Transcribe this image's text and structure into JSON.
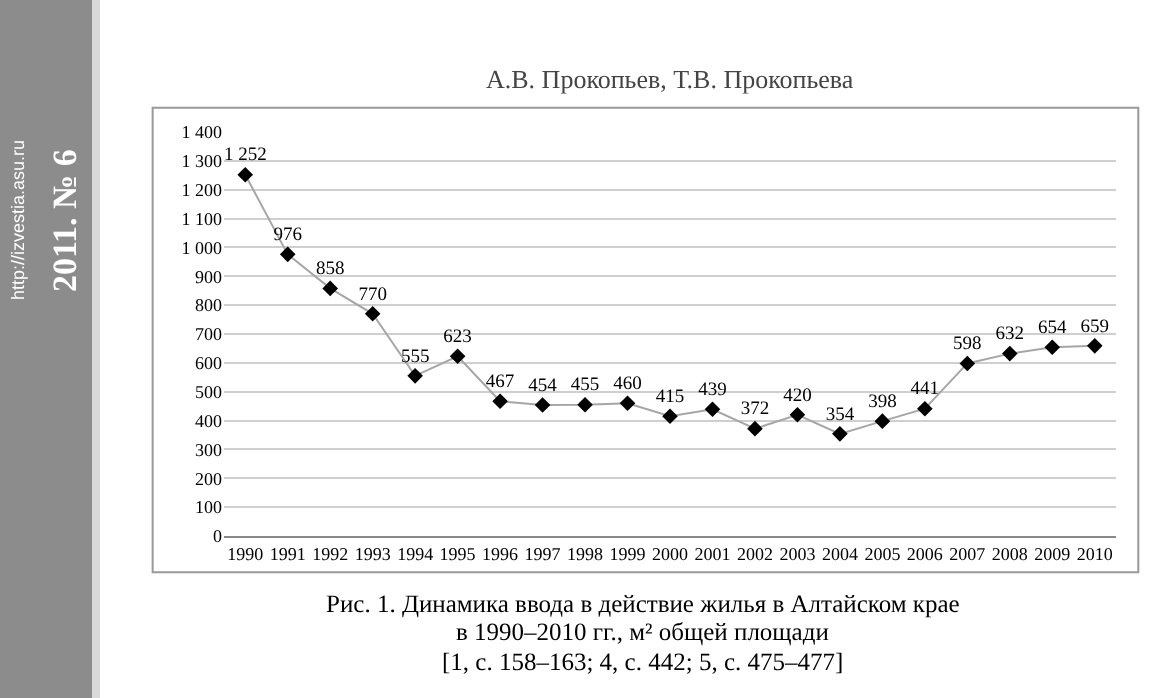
{
  "chart_data": {
    "type": "line",
    "categories": [
      "1990",
      "1991",
      "1992",
      "1993",
      "1994",
      "1995",
      "1996",
      "1997",
      "1998",
      "1999",
      "2000",
      "2001",
      "2002",
      "2003",
      "2004",
      "2005",
      "2006",
      "2007",
      "2008",
      "2009",
      "2010"
    ],
    "series": [
      {
        "color": "#a6a6a6",
        "values": [
          1252,
          976,
          858,
          770,
          555,
          623,
          467,
          454,
          455,
          460,
          415,
          439,
          372,
          420,
          354,
          398,
          441,
          598,
          632,
          654,
          659
        ]
      }
    ],
    "value_labels": [
      "1 252",
      "976",
      "858",
      "770",
      "555",
      "623",
      "467",
      "454",
      "455",
      "460",
      "415",
      "439",
      "372",
      "420",
      "354",
      "398",
      "441",
      "598",
      "632",
      "654",
      "659"
    ],
    "ylim": [
      0,
      1400
    ],
    "yticks": [
      0,
      100,
      200,
      300,
      400,
      500,
      600,
      700,
      800,
      900,
      {
        "value": 1000,
        "label": "1 000"
      },
      {
        "value": 1100,
        "label": "1 100"
      },
      {
        "value": 1200,
        "label": "1 200"
      },
      {
        "value": 1300,
        "label": "1 300"
      },
      {
        "value": 1400,
        "label": "1 400"
      }
    ],
    "grid": "y",
    "marker": "diamond",
    "line_style": "solid",
    "annotations": [
      "http://izvestia.asu.ru",
      "2011. № 6",
      "А.В. Прокопьев, Т.В. Прокопьева",
      "Рис. 1. Динамика ввода в действие жилья в Алтайском крае",
      "в 1990–2010 гг., м² общей площади",
      "[1, с. 158–163; 4, с. 442; 5, с. 475–477]"
    ]
  }
}
